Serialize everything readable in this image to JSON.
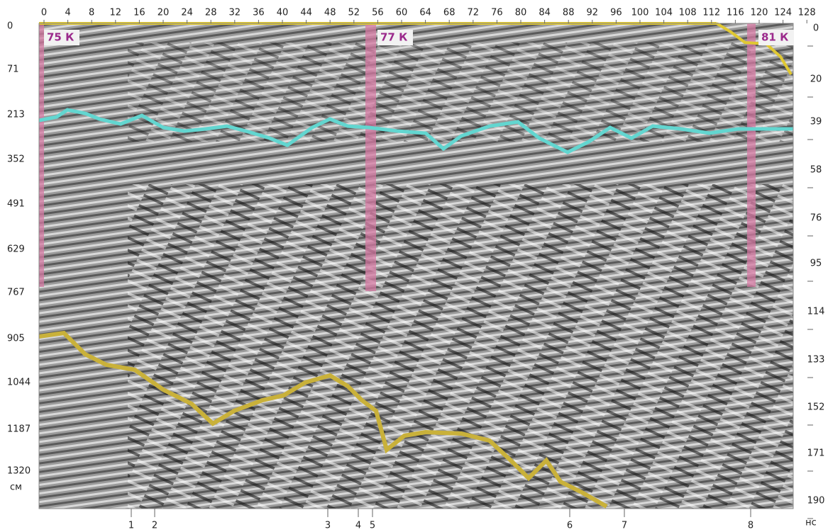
{
  "top_axis": [
    "0",
    "4",
    "8",
    "12",
    "16",
    "20",
    "24",
    "28",
    "32",
    "36",
    "40",
    "44",
    "48",
    "52",
    "56",
    "60",
    "64",
    "68",
    "72",
    "76",
    "80",
    "84",
    "88",
    "92",
    "96",
    "100",
    "104",
    "108",
    "112",
    "116",
    "120",
    "124",
    "128"
  ],
  "left_axis": [
    "0",
    "71",
    "213",
    "352",
    "491",
    "629",
    "767",
    "905",
    "1044",
    "1187",
    "1320"
  ],
  "left_unit": "см",
  "right_axis": [
    "0",
    "20",
    "39",
    "58",
    "76",
    "95",
    "114",
    "133",
    "152",
    "171",
    "190"
  ],
  "right_unit": "нс",
  "pickets": [
    "75 К",
    "77 К",
    "81 К"
  ],
  "markers": [
    "1",
    "2",
    "3",
    "4",
    "5",
    "6",
    "7",
    "8"
  ]
}
